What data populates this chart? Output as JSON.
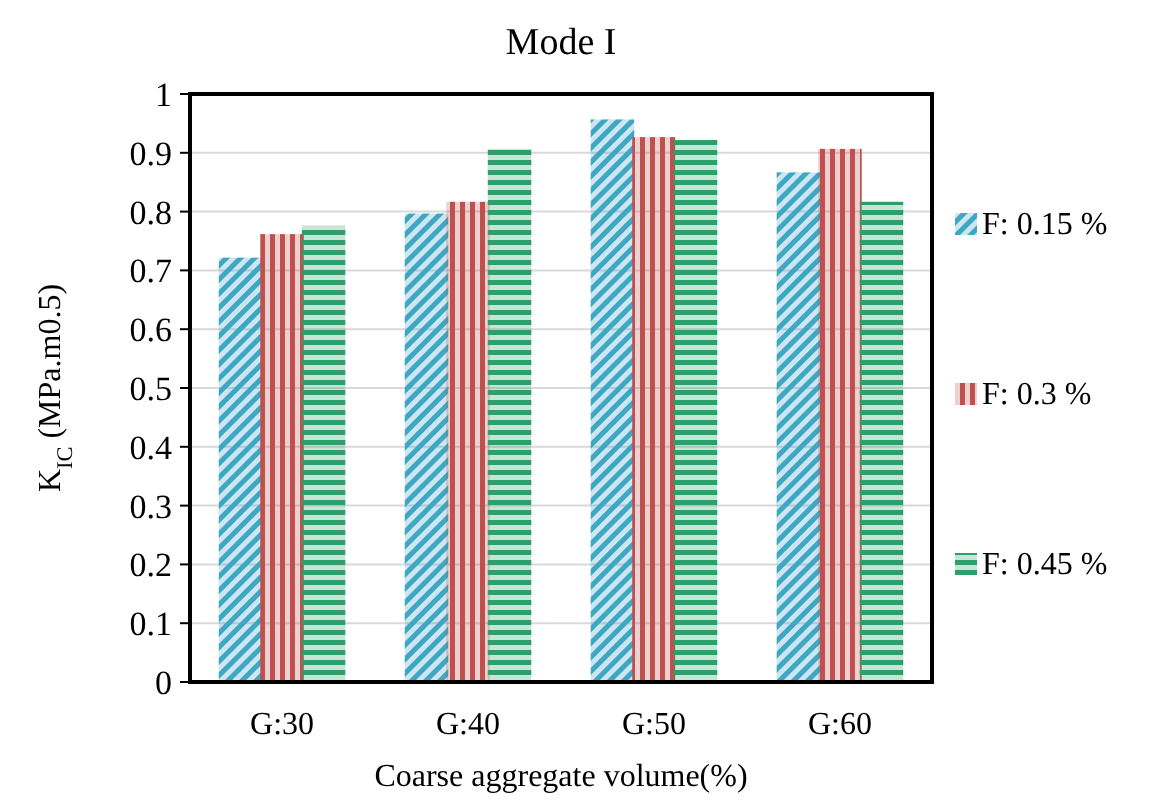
{
  "chart_data": {
    "type": "bar",
    "title": "Mode I",
    "xlabel": "Coarse aggregate volume(%)",
    "ylabel": "K$_{IC}$  (MPa.m0.5)",
    "categories": [
      "G:30",
      "G:40",
      "G:50",
      "G:60"
    ],
    "series": [
      {
        "name": "F: 0.15 %",
        "color": "#3fa6c4",
        "values": [
          0.72,
          0.795,
          0.955,
          0.865
        ]
      },
      {
        "name": "F: 0.3 %",
        "color": "#c0504d",
        "values": [
          0.76,
          0.815,
          0.925,
          0.905
        ]
      },
      {
        "name": "F: 0.45 %",
        "color": "#2e9e6a",
        "values": [
          0.775,
          0.905,
          0.92,
          0.815
        ]
      }
    ],
    "ylim": [
      0,
      1
    ],
    "yticks": [
      0,
      0.1,
      0.2,
      0.3,
      0.4,
      0.5,
      0.6,
      0.7,
      0.8,
      0.9,
      1
    ],
    "grid": "y",
    "legend": "right"
  }
}
